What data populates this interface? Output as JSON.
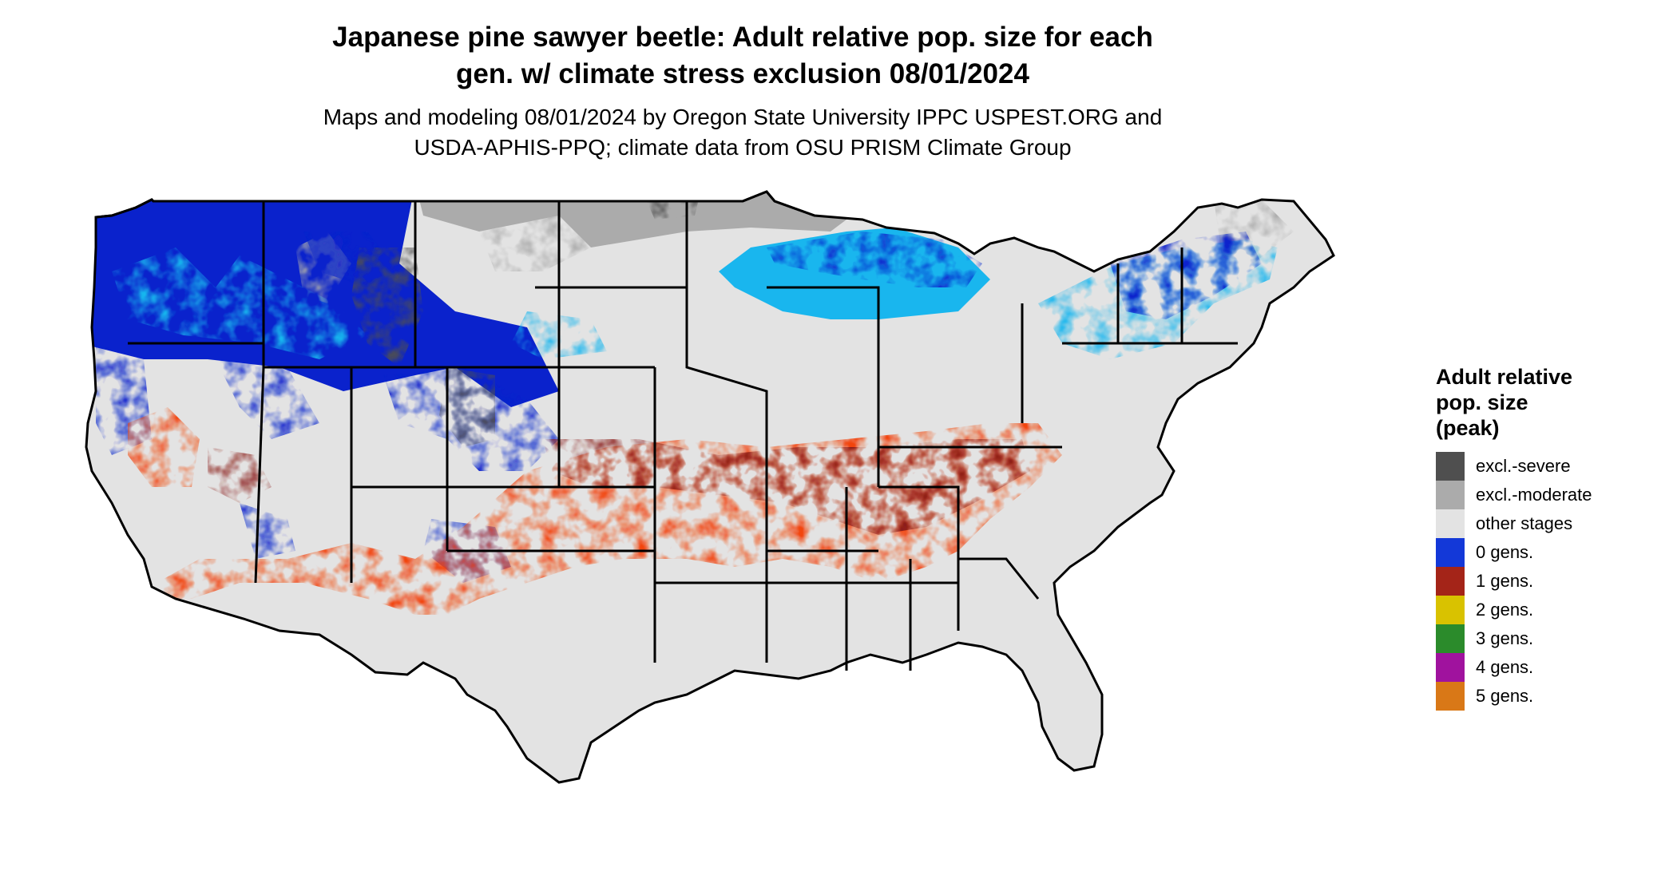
{
  "title": {
    "line1": "Japanese pine sawyer beetle: Adult relative pop. size for each",
    "line2": "gen. w/ climate stress exclusion 08/01/2024"
  },
  "subtitle": {
    "line1": "Maps and modeling 08/01/2024 by Oregon State University IPPC USPEST.ORG and",
    "line2": "USDA-APHIS-PPQ; climate data from OSU PRISM Climate Group"
  },
  "legend": {
    "title_line1": "Adult relative",
    "title_line2": "pop. size",
    "title_line3": "(peak)",
    "items": [
      {
        "label": "excl.-severe",
        "color": "#4f4f4f"
      },
      {
        "label": "excl.-moderate",
        "color": "#ababab"
      },
      {
        "label": "other stages",
        "color": "#e3e3e3"
      },
      {
        "label": "0 gens.",
        "color": "#1338d8"
      },
      {
        "label": "1 gens.",
        "color": "#a42418"
      },
      {
        "label": "2 gens.",
        "color": "#d9c200"
      },
      {
        "label": "3 gens.",
        "color": "#2b8b2b"
      },
      {
        "label": "4 gens.",
        "color": "#a0129e"
      },
      {
        "label": "5 gens.",
        "color": "#d97817"
      }
    ]
  },
  "map_colors": {
    "background": "#e3e3e3",
    "excl_severe": "#4f4f4f",
    "excl_moderate": "#ababab",
    "zero_gens_dark": "#0a22cc",
    "zero_gens_light": "#19b6ee",
    "one_gen_dark": "#8b1e1a",
    "one_gen_light": "#f2440c",
    "two_gens": "#e6d400",
    "border": "#000000"
  }
}
